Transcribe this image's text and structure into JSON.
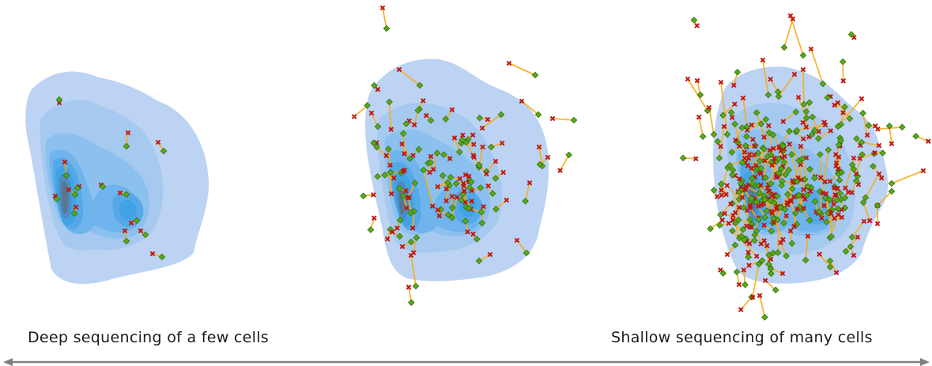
{
  "captions": {
    "left": "Deep sequencing of a few cells",
    "right": "Shallow sequencing of many cells"
  },
  "panels": [
    {
      "id": "few-cells",
      "pairs": 14
    },
    {
      "id": "medium-cells",
      "pairs": 85
    },
    {
      "id": "many-cells",
      "pairs": 230
    }
  ],
  "colors": {
    "density_outer": "#bcd3f3",
    "density_mid": "#8cc0ee",
    "density_inner": "#3fa3e6",
    "density_core": "#5a7590",
    "connector": "#f5ad1f",
    "cross_marker": "#c0160d",
    "diamond_marker": "#58a818",
    "diamond_edge": "#2f6a0a",
    "axis_arrow": "#808080"
  }
}
